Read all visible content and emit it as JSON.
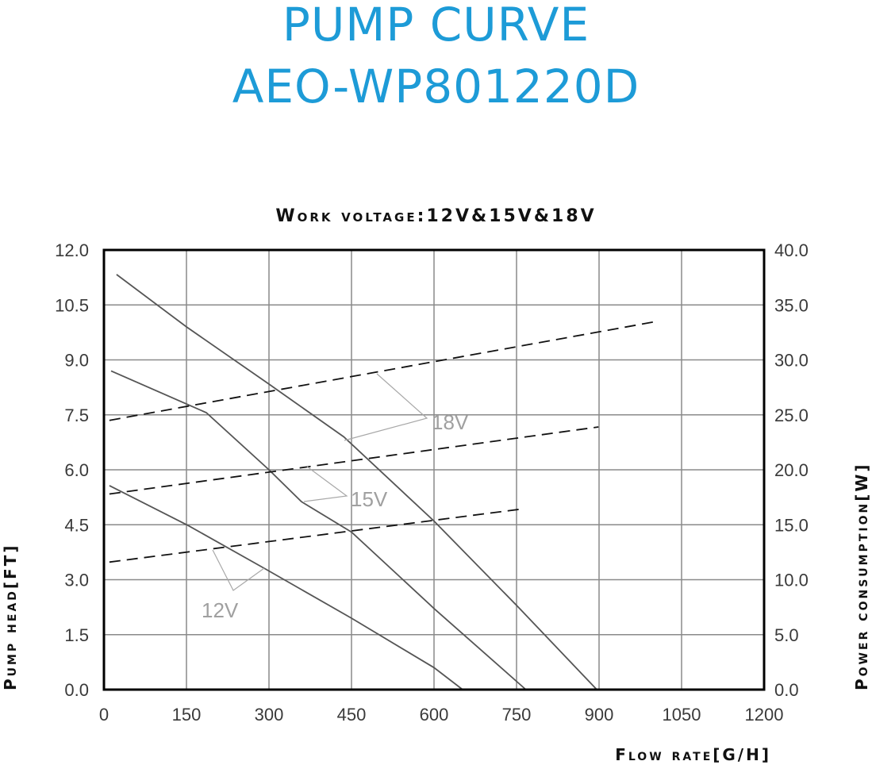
{
  "header": {
    "title_line1": "PUMP CURVE",
    "title_line2": "AEO-WP801220D",
    "subtitle": "Work voltage:12V&15V&18V",
    "title_color": "#1d9bd7"
  },
  "axes": {
    "x_label": "Flow rate[G/H]",
    "y_left_label": "Pump head[FT]",
    "y_right_label": "Power consumption[W]",
    "x_ticks": [
      "0",
      "150",
      "300",
      "450",
      "600",
      "750",
      "900",
      "1050",
      "1200"
    ],
    "y_left_ticks": [
      "0.0",
      "1.5",
      "3.0",
      "4.5",
      "6.0",
      "7.5",
      "9.0",
      "10.5",
      "12.0"
    ],
    "y_right_ticks": [
      "0.0",
      "5.0",
      "10.0",
      "15.0",
      "20.0",
      "25.0",
      "30.0",
      "35.0",
      "40.0"
    ]
  },
  "labels": {
    "v18": "18V",
    "v15": "15V",
    "v12": "12V"
  },
  "chart_data": {
    "type": "line",
    "title": "PUMP CURVE AEO-WP801220D",
    "subtitle": "Work voltage:12V&15V&18V",
    "xlabel": "Flow rate[G/H]",
    "ylabel": "Pump head[FT]",
    "y2label": "Power consumption[W]",
    "xlim": [
      0,
      1200
    ],
    "ylim": [
      0,
      12
    ],
    "y2lim": [
      0,
      40
    ],
    "x_ticks": [
      0,
      150,
      300,
      450,
      600,
      750,
      900,
      1050,
      1200
    ],
    "y_ticks": [
      0,
      1.5,
      3.0,
      4.5,
      6.0,
      7.5,
      9.0,
      10.5,
      12.0
    ],
    "y2_ticks": [
      0,
      5,
      10,
      15,
      20,
      25,
      30,
      35,
      40
    ],
    "grid": true,
    "legend": "inline labels (18V, 15V, 12V) with leader lines",
    "series": [
      {
        "name": "18V head",
        "axis": "left",
        "style": "solid",
        "x": [
          23,
          150,
          300,
          436,
          600,
          750,
          896
        ],
        "y": [
          11.33,
          9.9,
          8.34,
          6.9,
          4.6,
          2.3,
          0
        ]
      },
      {
        "name": "15V head",
        "axis": "left",
        "style": "solid",
        "x": [
          13,
          186,
          300,
          359,
          450,
          601,
          767
        ],
        "y": [
          8.7,
          7.56,
          6.0,
          5.13,
          4.3,
          2.2,
          0
        ]
      },
      {
        "name": "12V head",
        "axis": "left",
        "style": "solid",
        "x": [
          10,
          153,
          294,
          450,
          600,
          652
        ],
        "y": [
          5.57,
          4.48,
          3.29,
          1.95,
          0.6,
          0
        ]
      },
      {
        "name": "18V power",
        "axis": "right",
        "style": "dashed",
        "x": [
          10,
          1005
        ],
        "y": [
          24.5,
          33.5
        ]
      },
      {
        "name": "15V power",
        "axis": "right",
        "style": "dashed",
        "x": [
          10,
          899
        ],
        "y": [
          17.8,
          23.9
        ]
      },
      {
        "name": "12V power",
        "axis": "right",
        "style": "dashed",
        "x": [
          10,
          754
        ],
        "y": [
          11.6,
          16.4
        ]
      }
    ]
  }
}
